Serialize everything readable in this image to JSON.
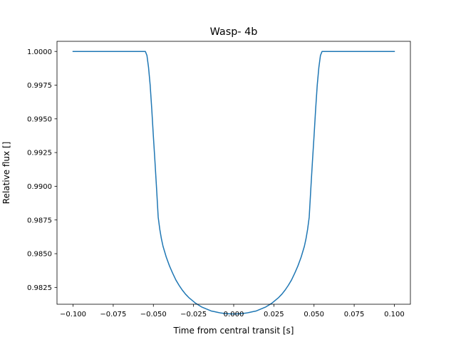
{
  "chart_data": {
    "type": "line",
    "title": "Wasp- 4b",
    "xlabel": "Time from central transit [s]",
    "ylabel": "Relative flux []",
    "xlim": [
      -0.11,
      0.11
    ],
    "ylim": [
      0.98125,
      1.00075
    ],
    "x_ticks": [
      -0.1,
      -0.075,
      -0.05,
      -0.025,
      0.0,
      0.025,
      0.05,
      0.075,
      0.1
    ],
    "x_tick_labels": [
      "−0.100",
      "−0.075",
      "−0.050",
      "−0.025",
      "0.000",
      "0.025",
      "0.050",
      "0.075",
      "0.100"
    ],
    "y_ticks": [
      0.9825,
      0.985,
      0.9875,
      0.99,
      0.9925,
      0.995,
      0.9975,
      1.0
    ],
    "y_tick_labels": [
      "0.9825",
      "0.9850",
      "0.9875",
      "0.9900",
      "0.9925",
      "0.9950",
      "0.9975",
      "1.0000"
    ],
    "grid": false,
    "series": [
      {
        "color": "#1f77b4",
        "x": [
          -0.1,
          -0.08,
          -0.06,
          -0.055,
          -0.054,
          -0.053,
          -0.052,
          -0.051,
          -0.05,
          -0.049,
          -0.048,
          -0.047,
          -0.046,
          -0.045,
          -0.044,
          -0.042,
          -0.04,
          -0.038,
          -0.036,
          -0.034,
          -0.032,
          -0.03,
          -0.028,
          -0.026,
          -0.024,
          -0.022,
          -0.02,
          -0.018,
          -0.016,
          -0.014,
          -0.012,
          -0.01,
          -0.008,
          -0.006,
          -0.004,
          -0.002,
          0.0,
          0.002,
          0.004,
          0.006,
          0.008,
          0.01,
          0.012,
          0.014,
          0.016,
          0.018,
          0.02,
          0.022,
          0.024,
          0.026,
          0.028,
          0.03,
          0.032,
          0.034,
          0.036,
          0.038,
          0.04,
          0.042,
          0.044,
          0.045,
          0.046,
          0.047,
          0.048,
          0.049,
          0.05,
          0.051,
          0.052,
          0.053,
          0.054,
          0.055,
          0.06,
          0.08,
          0.1
        ],
        "y": [
          1.0,
          1.0,
          1.0,
          1.0,
          0.9997,
          0.9988,
          0.9975,
          0.9957,
          0.9937,
          0.9918,
          0.9898,
          0.9877,
          0.9868,
          0.9861,
          0.98555,
          0.98475,
          0.9841,
          0.98355,
          0.98305,
          0.98265,
          0.9823,
          0.982,
          0.98175,
          0.98155,
          0.98135,
          0.9812,
          0.98105,
          0.98095,
          0.98085,
          0.98075,
          0.9807,
          0.98065,
          0.9806,
          0.98057,
          0.98055,
          0.98054,
          0.98053,
          0.98054,
          0.98055,
          0.98057,
          0.9806,
          0.98065,
          0.9807,
          0.98075,
          0.98085,
          0.98095,
          0.98105,
          0.9812,
          0.98135,
          0.98155,
          0.98175,
          0.982,
          0.9823,
          0.98265,
          0.98305,
          0.98355,
          0.9841,
          0.98475,
          0.98555,
          0.9861,
          0.9868,
          0.9877,
          0.9898,
          0.9918,
          0.9937,
          0.9957,
          0.9975,
          0.9988,
          0.9997,
          1.0,
          1.0,
          1.0,
          1.0
        ]
      }
    ]
  }
}
